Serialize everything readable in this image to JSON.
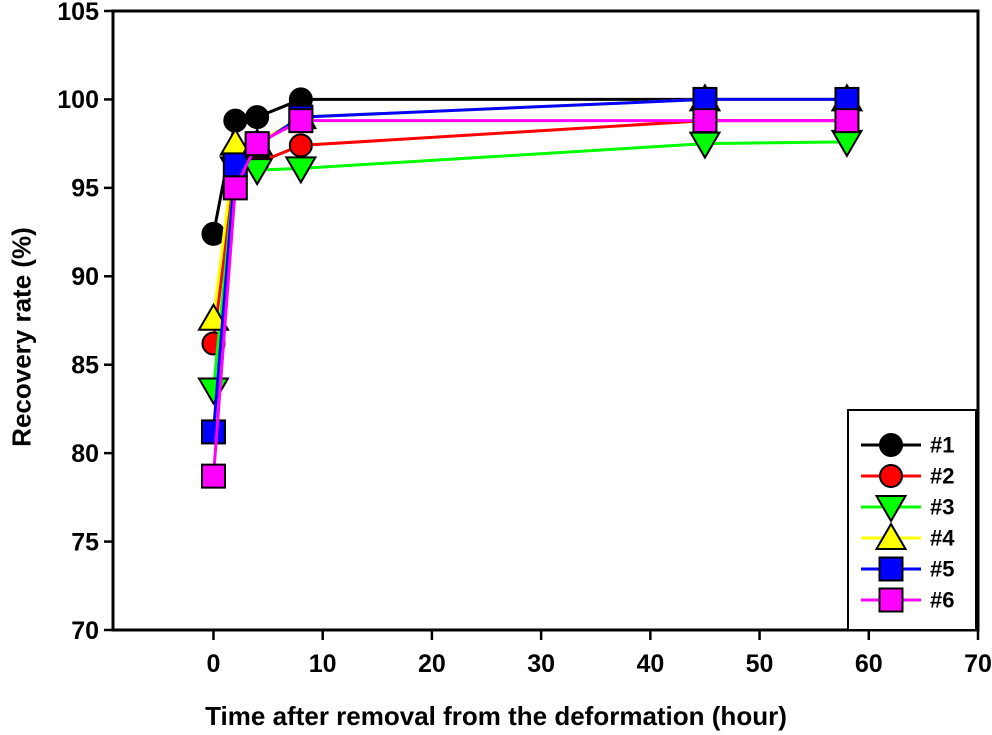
{
  "figure": {
    "background": "#ffffff",
    "text_color": "#000000"
  },
  "chart_data": {
    "type": "line",
    "title": "",
    "xlabel": "Time after removal from the deformation (hour)",
    "ylabel": "Recovery rate (%)",
    "x": [
      0,
      2,
      4,
      8,
      45,
      58
    ],
    "xlim": [
      -9.2,
      70
    ],
    "ylim": [
      70,
      105
    ],
    "x_ticks": [
      0,
      10,
      20,
      30,
      40,
      50,
      60,
      70
    ],
    "y_ticks": [
      70,
      75,
      80,
      85,
      90,
      95,
      100,
      105
    ],
    "grid": false,
    "legend_position": "lower right",
    "series": [
      {
        "name": "#1",
        "marker": "circle",
        "color": "#000000",
        "values": [
          92.4,
          98.8,
          99.0,
          100.0,
          100.0,
          100.0
        ]
      },
      {
        "name": "#2",
        "marker": "circle",
        "color": "#ff0000",
        "values": [
          86.2,
          96.3,
          96.4,
          97.4,
          98.8,
          98.8
        ]
      },
      {
        "name": "#3",
        "marker": "triangle-down",
        "color": "#00ff00",
        "values": [
          83.6,
          96.1,
          96.0,
          96.1,
          97.5,
          97.6
        ]
      },
      {
        "name": "#4",
        "marker": "triangle-up",
        "color": "#ffff00",
        "values": [
          87.6,
          97.5,
          97.5,
          99.0,
          100.0,
          100.0
        ]
      },
      {
        "name": "#5",
        "marker": "square",
        "color": "#0000ff",
        "values": [
          81.2,
          96.3,
          97.4,
          99.0,
          100.0,
          100.0
        ]
      },
      {
        "name": "#6",
        "marker": "square",
        "color": "#ff00ff",
        "values": [
          78.7,
          95.0,
          97.5,
          98.8,
          98.8,
          98.8
        ]
      }
    ]
  }
}
